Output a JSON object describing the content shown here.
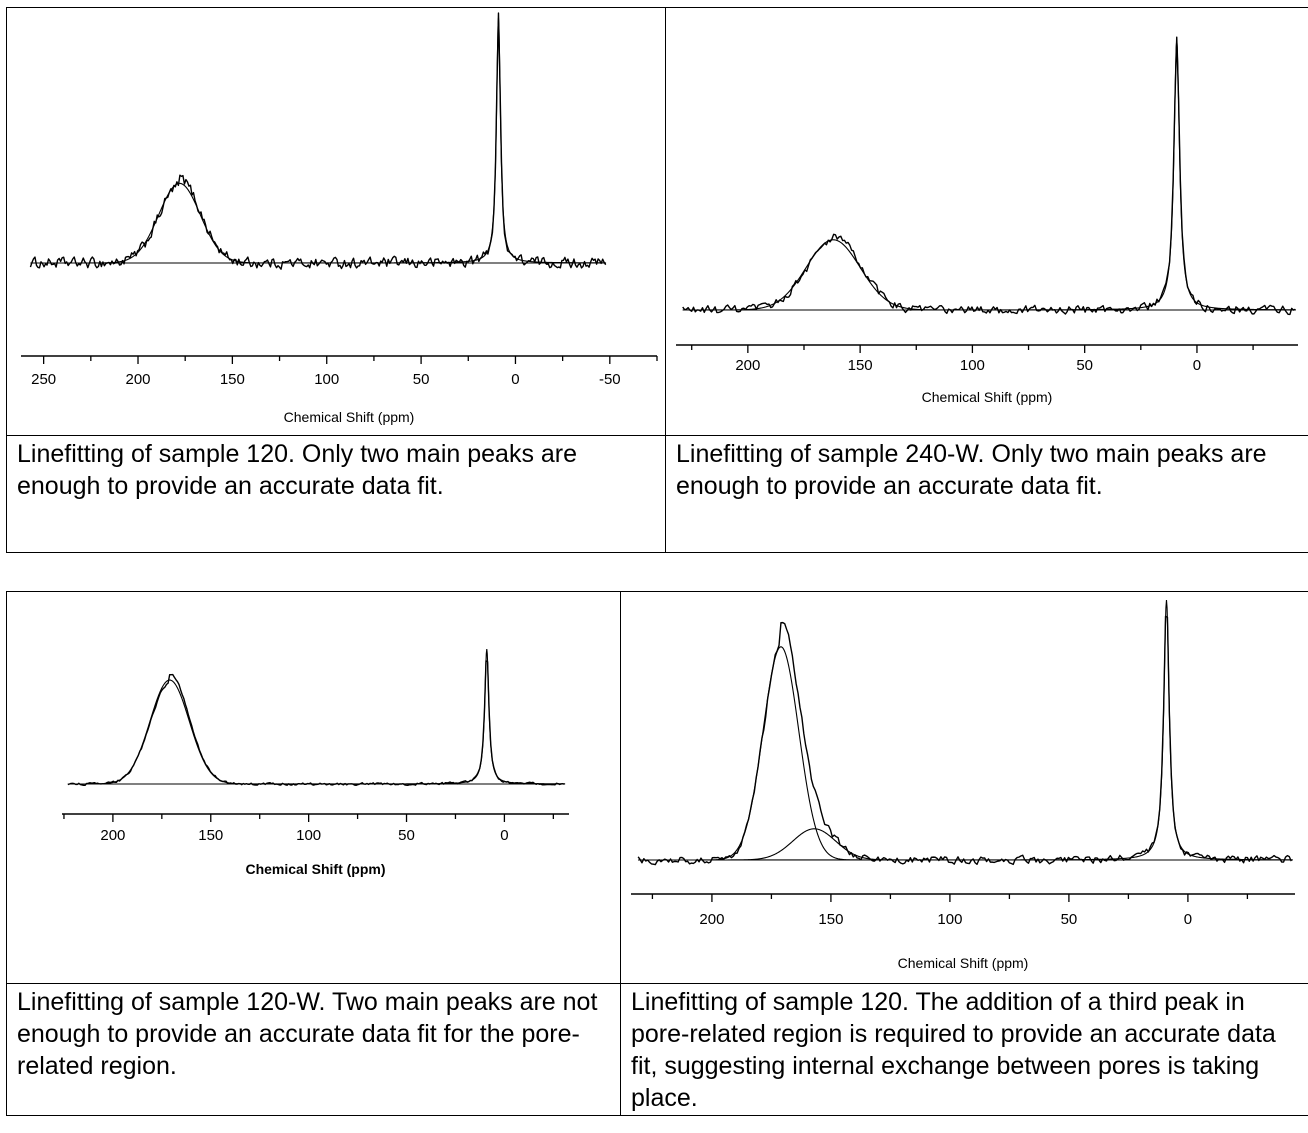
{
  "panels": [
    {
      "caption": "Linefitting of sample 120. Only two main peaks are enough to provide an accurate data fit.",
      "chart_data": {
        "type": "line",
        "xlabel": "Chemical Shift (ppm)",
        "xlabel_bold": false,
        "ticks": [
          250,
          200,
          150,
          100,
          50,
          0,
          -50
        ],
        "xlim": [
          262,
          -75
        ],
        "data_range": [
          257,
          -48
        ],
        "x_reversed": true,
        "series": [
          {
            "name": "",
            "kind": "spectrum"
          },
          {
            "name": "",
            "kind": "fit"
          }
        ],
        "peaks": [
          {
            "center": 178,
            "height": 0.325,
            "width": 11,
            "shape": "gaussian"
          },
          {
            "center": 9,
            "height": 1.0,
            "width": 1.3,
            "shape": "lorentzian"
          }
        ],
        "noise": 0.03
      }
    },
    {
      "caption": "Linefitting of sample 240-W. Only two main peaks are enough to provide an accurate data fit.",
      "chart_data": {
        "type": "line",
        "xlabel": "Chemical Shift (ppm)",
        "xlabel_bold": false,
        "ticks": [
          200,
          150,
          100,
          50,
          0
        ],
        "xlim": [
          232,
          -45
        ],
        "data_range": [
          229,
          -44
        ],
        "x_reversed": true,
        "series": [
          {
            "name": "",
            "kind": "spectrum"
          },
          {
            "name": "",
            "kind": "fit"
          }
        ],
        "peaks": [
          {
            "center": 162,
            "height": 0.26,
            "width": 12,
            "shape": "gaussian"
          },
          {
            "center": 9,
            "height": 1.0,
            "width": 1.5,
            "shape": "lorentzian"
          }
        ],
        "noise": 0.022
      }
    },
    {
      "caption": "Linefitting of sample 120-W. Two main peaks are not enough to provide an accurate data fit for the pore-related region.",
      "chart_data": {
        "type": "line",
        "xlabel": "Chemical Shift (ppm)",
        "xlabel_bold": true,
        "ticks": [
          200,
          150,
          100,
          50,
          0
        ],
        "xlim": [
          226,
          -33
        ],
        "data_range": [
          223,
          -31
        ],
        "x_reversed": true,
        "series": [
          {
            "name": "",
            "kind": "spectrum"
          },
          {
            "name": "",
            "kind": "fit"
          }
        ],
        "peaks": [
          {
            "center": 171,
            "height": 0.77,
            "width": 10,
            "shape": "gaussian"
          },
          {
            "center": 9,
            "height": 1.0,
            "width": 1.3,
            "shape": "lorentzian"
          }
        ],
        "noise": 0.012
      }
    },
    {
      "caption": "Linefitting of sample 120. The addition of a third peak in pore-related region is required to provide an accurate data fit, suggesting internal exchange between pores is taking place.",
      "chart_data": {
        "type": "line",
        "xlabel": "Chemical Shift (ppm)",
        "xlabel_bold": false,
        "ticks": [
          200,
          150,
          100,
          50,
          0
        ],
        "xlim": [
          234,
          -45
        ],
        "data_range": [
          231,
          -44
        ],
        "x_reversed": true,
        "series": [
          {
            "name": "",
            "kind": "spectrum"
          },
          {
            "name": "",
            "kind": "fit"
          },
          {
            "name": "",
            "kind": "component"
          }
        ],
        "peaks": [
          {
            "center": 171,
            "height": 0.82,
            "width": 7.5,
            "shape": "gaussian"
          },
          {
            "center": 157,
            "height": 0.12,
            "width": 9,
            "shape": "gaussian"
          },
          {
            "center": 9,
            "height": 1.0,
            "width": 1.4,
            "shape": "lorentzian"
          }
        ],
        "noise": 0.02
      }
    }
  ]
}
